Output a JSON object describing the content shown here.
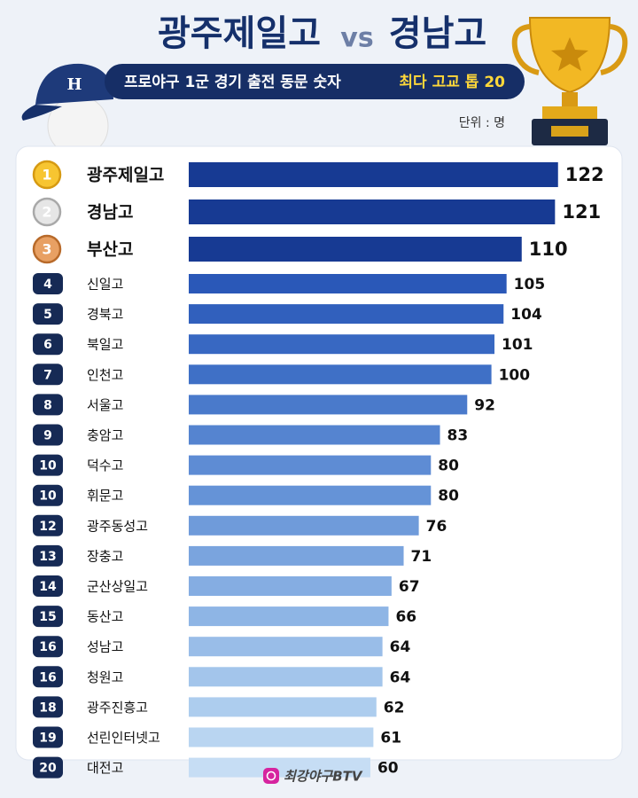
{
  "chart_data": {
    "type": "bar",
    "orientation": "horizontal",
    "title": {
      "left": "광주제일고",
      "mid": "vs",
      "right": "경남고"
    },
    "subtitle": {
      "main": "프로야구 1군 경기 출전 동문 숫자",
      "highlight": "최다 고교 톱 20"
    },
    "unit": "단위 : 명",
    "ranks": [
      1,
      2,
      3,
      4,
      5,
      6,
      7,
      8,
      9,
      10,
      10,
      12,
      13,
      14,
      15,
      16,
      16,
      18,
      19,
      20
    ],
    "categories": [
      "광주제일고",
      "경남고",
      "부산고",
      "신일고",
      "경북고",
      "북일고",
      "인천고",
      "서울고",
      "충암고",
      "덕수고",
      "휘문고",
      "광주동성고",
      "장충고",
      "군산상일고",
      "동산고",
      "성남고",
      "청원고",
      "광주진흥고",
      "선린인터넷고",
      "대전고"
    ],
    "values": [
      122,
      121,
      110,
      105,
      104,
      101,
      100,
      92,
      83,
      80,
      80,
      76,
      71,
      67,
      66,
      64,
      64,
      62,
      61,
      60
    ],
    "colors": [
      "#173a93",
      "#173a93",
      "#173a93",
      "#2a58b8",
      "#3160bd",
      "#3868c2",
      "#3f70c6",
      "#4a7acb",
      "#5584d0",
      "#5e8cd4",
      "#6593d7",
      "#6f9bda",
      "#7aa4de",
      "#85ade2",
      "#8eb5e5",
      "#99bde8",
      "#a3c5eb",
      "#adcdee",
      "#b9d5f1",
      "#c6ddf4"
    ],
    "xlim": [
      0,
      125
    ],
    "footer": "최강야구BTV"
  }
}
